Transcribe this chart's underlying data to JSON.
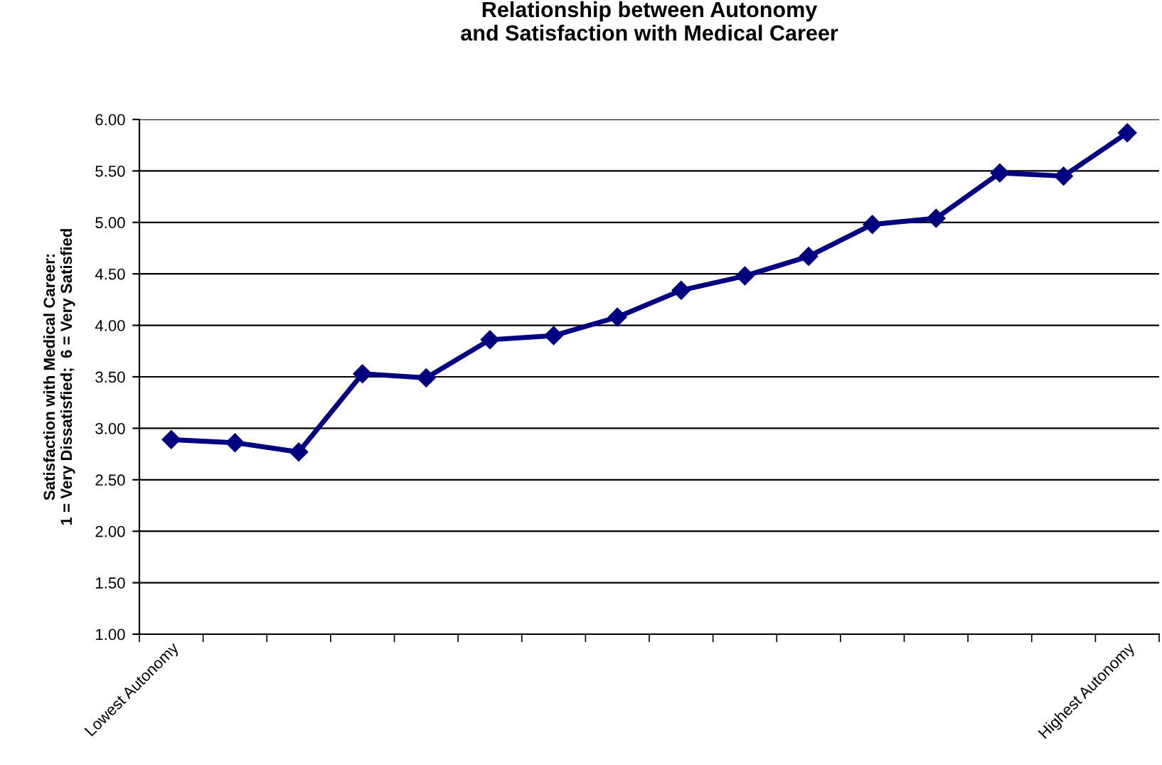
{
  "chart_data": {
    "type": "line",
    "title": "Relationship between Autonomy\nand Satisfaction with Medical Career",
    "ylabel": "Satisfaction with Medical Career:\n1 = Very Dissatisfied;  6 = Very Satisfied",
    "categories": [
      "Lowest Autonomy",
      null,
      null,
      null,
      null,
      null,
      null,
      null,
      null,
      null,
      null,
      null,
      null,
      null,
      null,
      "Highest Autonomy"
    ],
    "series": [
      {
        "color": "#000080",
        "values": [
          2.89,
          2.86,
          2.77,
          3.53,
          3.49,
          3.86,
          3.9,
          4.08,
          4.34,
          4.48,
          4.67,
          4.98,
          5.04,
          5.48,
          5.45,
          5.87
        ]
      }
    ],
    "ylim": [
      1,
      6
    ],
    "yticks": [
      {
        "value": 1,
        "label": "1.00"
      },
      {
        "value": 1.5,
        "label": "1.50"
      },
      {
        "value": 2,
        "label": "2.00"
      },
      {
        "value": 2.5,
        "label": "2.50"
      },
      {
        "value": 3,
        "label": "3.00"
      },
      {
        "value": 3.5,
        "label": "3.50"
      },
      {
        "value": 4,
        "label": "4.00"
      },
      {
        "value": 4.5,
        "label": "4.50"
      },
      {
        "value": 5,
        "label": "5.00"
      },
      {
        "value": 5.5,
        "label": "5.50"
      },
      {
        "value": 6,
        "label": "6.00"
      }
    ],
    "grid": "y",
    "marker": "diamond",
    "line_style": "solid",
    "legend": false
  }
}
